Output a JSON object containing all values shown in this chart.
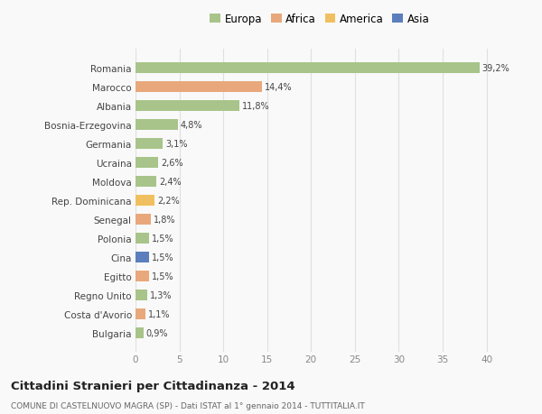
{
  "categories": [
    "Romania",
    "Marocco",
    "Albania",
    "Bosnia-Erzegovina",
    "Germania",
    "Ucraina",
    "Moldova",
    "Rep. Dominicana",
    "Senegal",
    "Polonia",
    "Cina",
    "Egitto",
    "Regno Unito",
    "Costa d'Avorio",
    "Bulgaria"
  ],
  "values": [
    39.2,
    14.4,
    11.8,
    4.8,
    3.1,
    2.6,
    2.4,
    2.2,
    1.8,
    1.5,
    1.5,
    1.5,
    1.3,
    1.1,
    0.9
  ],
  "labels": [
    "39,2%",
    "14,4%",
    "11,8%",
    "4,8%",
    "3,1%",
    "2,6%",
    "2,4%",
    "2,2%",
    "1,8%",
    "1,5%",
    "1,5%",
    "1,5%",
    "1,3%",
    "1,1%",
    "0,9%"
  ],
  "colors": [
    "#a8c48a",
    "#e8a87c",
    "#a8c48a",
    "#a8c48a",
    "#a8c48a",
    "#a8c48a",
    "#a8c48a",
    "#f0c060",
    "#e8a87c",
    "#a8c48a",
    "#5b7fbc",
    "#e8a87c",
    "#a8c48a",
    "#e8a87c",
    "#a8c48a"
  ],
  "legend_labels": [
    "Europa",
    "Africa",
    "America",
    "Asia"
  ],
  "legend_colors": [
    "#a8c48a",
    "#e8a87c",
    "#f0c060",
    "#5b7fbc"
  ],
  "title": "Cittadini Stranieri per Cittadinanza - 2014",
  "subtitle": "COMUNE DI CASTELNUOVO MAGRA (SP) - Dati ISTAT al 1° gennaio 2014 - TUTTITALIA.IT",
  "xlim": [
    0,
    42
  ],
  "xticks": [
    0,
    5,
    10,
    15,
    20,
    25,
    30,
    35,
    40
  ],
  "background_color": "#f9f9f9",
  "grid_color": "#e0e0e0",
  "bar_height": 0.55
}
